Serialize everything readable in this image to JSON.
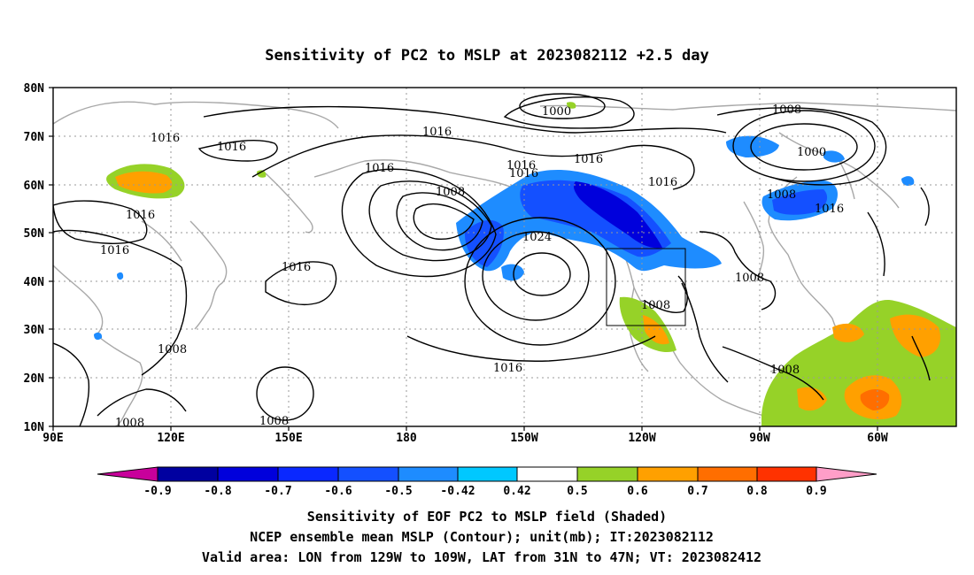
{
  "title": "Sensitivity of PC2 to MSLP at 2023082112 +2.5 day",
  "map": {
    "lat_ticks": [
      "80N",
      "70N",
      "60N",
      "50N",
      "40N",
      "30N",
      "20N",
      "10N"
    ],
    "lon_ticks": [
      "90E",
      "120E",
      "150E",
      "180",
      "150W",
      "120W",
      "90W",
      "60W"
    ],
    "grid": "dotted",
    "valid_box_label": "LON 129W-109W, LAT 31N-47N"
  },
  "contour_labels": {
    "c1000_top": "1000",
    "c1008_ne": "1008",
    "c1000_ne": "1000",
    "c1016_a": "1016",
    "c1016_b": "1016",
    "c1016_c": "1016",
    "c1016_d": "1016",
    "c1016_e": "1016",
    "c1016_f": "1016",
    "c1016_g": "1016",
    "c1016_h": "1016",
    "c1016_i": "1016",
    "c1008_w": "1008",
    "c1024": "1024",
    "c1016_j": "1016",
    "c1008_ea": "1008",
    "c1016_k": "1016",
    "c1008_eb": "1008",
    "c1008_ec": "1008",
    "c1016_l": "1016",
    "c1008_sw": "1008",
    "c1008_s1": "1008",
    "c1008_s2": "1008",
    "c1008_se": "1008",
    "c1016_m": "1016"
  },
  "colorbar": {
    "labels": [
      "-0.9",
      "-0.8",
      "-0.7",
      "-0.6",
      "-0.5",
      "-0.42",
      "0.42",
      "0.5",
      "0.6",
      "0.7",
      "0.8",
      "0.9"
    ],
    "colors": [
      "#c8009b",
      "#0000a0",
      "#0000dc",
      "#0a28ff",
      "#1450ff",
      "#1e8cff",
      "#00c8ff",
      "#ffffff",
      "#96d228",
      "#ffa000",
      "#ff6e00",
      "#ff3200",
      "#ff0000",
      "#ff9ec8"
    ]
  },
  "caption": {
    "line1": "Sensitivity of EOF PC2 to MSLP field (Shaded)",
    "line2": "NCEP ensemble mean MSLP (Contour); unit(mb); IT:2023082112",
    "line3": "Valid area: LON from 129W to 109W, LAT from 31N to 47N; VT: 2023082412"
  }
}
